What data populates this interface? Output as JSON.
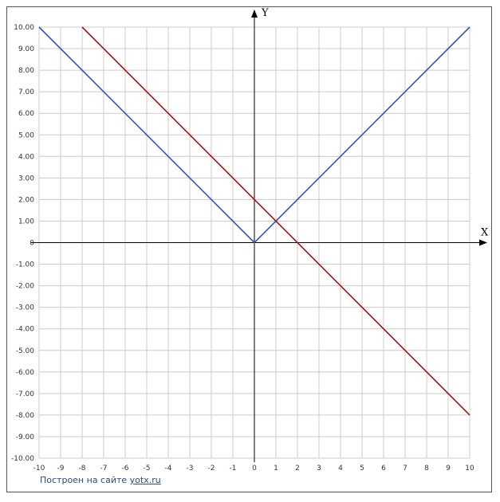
{
  "chart_data": {
    "type": "line",
    "xlabel": "X",
    "ylabel": "Y",
    "xlim": [
      -10,
      10
    ],
    "ylim": [
      -10,
      10
    ],
    "grid": true,
    "x_ticks": [
      "-10",
      "-9",
      "-8",
      "-7",
      "-6",
      "-5",
      "-4",
      "-3",
      "-2",
      "-1",
      "0",
      "1",
      "2",
      "3",
      "4",
      "5",
      "6",
      "7",
      "8",
      "9",
      "10"
    ],
    "y_ticks": [
      "10.00",
      "9.00",
      "8.00",
      "7.00",
      "6.00",
      "5.00",
      "4.00",
      "3.00",
      "2.00",
      "1.00",
      "0",
      "-1.00",
      "-2.00",
      "-3.00",
      "-4.00",
      "-5.00",
      "-6.00",
      "-7.00",
      "-8.00",
      "-9.00",
      "-10.00"
    ],
    "series": [
      {
        "color": "#3355bb",
        "x": [
          -10,
          0,
          10
        ],
        "y": [
          10,
          0,
          10
        ]
      },
      {
        "color": "#aa1111",
        "x": [
          -8,
          10
        ],
        "y": [
          10,
          -8
        ]
      }
    ]
  },
  "footer": {
    "text": "Построен на сайте ",
    "link": "yotx.ru"
  }
}
